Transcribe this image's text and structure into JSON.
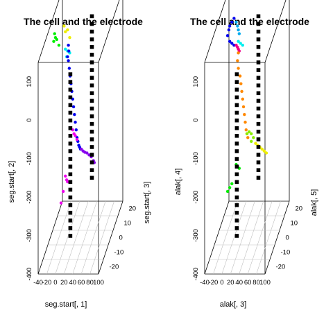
{
  "colors": {
    "electrode": "#000000",
    "grid": "#bfbfbf",
    "background": "#ffffff"
  },
  "chart_data": [
    {
      "type": "scatter3d",
      "title": "The cell and the electrode",
      "xlabel": "seg.start[, 1]",
      "ylabel": "seg.start[, 2]",
      "zlabel": "seg.start[, 3]",
      "xlim": [
        -40,
        100
      ],
      "ylim": [
        -400,
        150
      ],
      "zlim": [
        -25,
        25
      ],
      "x_ticks": [
        "-40",
        "-20",
        "0",
        "20",
        "40",
        "60",
        "80",
        "100"
      ],
      "y_ticks": [
        "100",
        "0",
        "-100",
        "-200",
        "-300",
        "-400"
      ],
      "z_ticks": [
        "20",
        "10",
        "0",
        "-10",
        "-20"
      ],
      "electrode": {
        "color": "#000000",
        "points": [
          [
            43,
            130,
            12
          ],
          [
            43,
            110,
            12
          ],
          [
            43,
            90,
            12
          ],
          [
            43,
            70,
            12
          ],
          [
            43,
            50,
            12
          ],
          [
            43,
            30,
            12
          ],
          [
            43,
            10,
            12
          ],
          [
            43,
            -10,
            12
          ],
          [
            43,
            -30,
            12
          ],
          [
            43,
            -50,
            12
          ],
          [
            43,
            -70,
            12
          ],
          [
            43,
            -90,
            12
          ],
          [
            43,
            -110,
            12
          ],
          [
            43,
            -130,
            12
          ],
          [
            43,
            -150,
            12
          ],
          [
            43,
            -170,
            12
          ],
          [
            43,
            -190,
            12
          ],
          [
            43,
            -210,
            12
          ],
          [
            43,
            -230,
            12
          ],
          [
            43,
            -250,
            12
          ],
          [
            43,
            -270,
            12
          ],
          [
            43,
            -290,
            12
          ],
          [
            20,
            70,
            -12
          ],
          [
            20,
            50,
            -12
          ],
          [
            20,
            30,
            -12
          ],
          [
            20,
            10,
            -12
          ],
          [
            20,
            -10,
            -12
          ],
          [
            20,
            -30,
            -12
          ],
          [
            20,
            -50,
            -12
          ],
          [
            20,
            -70,
            -12
          ],
          [
            20,
            -90,
            -12
          ],
          [
            20,
            -110,
            -12
          ],
          [
            20,
            -130,
            -12
          ],
          [
            20,
            -150,
            -12
          ],
          [
            20,
            -170,
            -12
          ],
          [
            20,
            -190,
            -12
          ],
          [
            20,
            -210,
            -12
          ],
          [
            20,
            -230,
            -12
          ],
          [
            20,
            -250,
            -12
          ],
          [
            20,
            -270,
            -12
          ],
          [
            20,
            -290,
            -12
          ],
          [
            20,
            -310,
            -12
          ],
          [
            20,
            -330,
            -12
          ],
          [
            20,
            -350,
            -12
          ]
        ]
      },
      "segments": [
        {
          "color": "#00ee00",
          "points": [
            [
              -30,
              130,
              0
            ],
            [
              -28,
              120,
              0
            ],
            [
              -32,
              110,
              0
            ],
            [
              -25,
              115,
              0
            ],
            [
              -20,
              100,
              0
            ]
          ]
        },
        {
          "color": "#eeee00",
          "points": [
            [
              -8,
              150,
              0
            ],
            [
              -5,
              135,
              0
            ],
            [
              0,
              140,
              0
            ],
            [
              5,
              120,
              0
            ]
          ]
        },
        {
          "color": "#00eeee",
          "points": [
            [
              -5,
              90,
              0
            ],
            [
              0,
              85,
              0
            ],
            [
              -2,
              70,
              0
            ],
            [
              5,
              80,
              0
            ]
          ]
        },
        {
          "color": "#0000ee",
          "points": [
            [
              2,
              100,
              0
            ],
            [
              3,
              85,
              0
            ],
            [
              0,
              70,
              0
            ],
            [
              2,
              60,
              0
            ],
            [
              4,
              40,
              0
            ],
            [
              6,
              20,
              0
            ],
            [
              8,
              0,
              0
            ],
            [
              10,
              -20,
              0
            ],
            [
              12,
              -40,
              0
            ],
            [
              14,
              -60,
              0
            ],
            [
              16,
              -80,
              0
            ],
            [
              18,
              -100,
              0
            ],
            [
              20,
              -120,
              0
            ],
            [
              22,
              -140,
              0
            ],
            [
              24,
              -150,
              0
            ],
            [
              26,
              -160,
              0
            ],
            [
              28,
              -165,
              0
            ],
            [
              30,
              -170,
              0
            ]
          ]
        },
        {
          "color": "#8800ee",
          "points": [
            [
              32,
              -170,
              0
            ],
            [
              36,
              -175,
              0
            ],
            [
              40,
              -178,
              0
            ],
            [
              45,
              -180,
              0
            ],
            [
              50,
              -185,
              0
            ],
            [
              55,
              -190,
              0
            ],
            [
              60,
              -200,
              0
            ],
            [
              62,
              -205,
              0
            ]
          ]
        },
        {
          "color": "#ee00ee",
          "points": [
            [
              12,
              -120,
              0
            ],
            [
              15,
              -130,
              0
            ],
            [
              18,
              -135,
              0
            ],
            [
              22,
              -145,
              0
            ]
          ]
        },
        {
          "color": "#ee00ee",
          "points": [
            [
              -5,
              -240,
              0
            ],
            [
              -2,
              -250,
              0
            ],
            [
              0,
              -255,
              0
            ],
            [
              -10,
              -280,
              0
            ],
            [
              -15,
              -310,
              0
            ]
          ]
        }
      ]
    },
    {
      "type": "scatter3d",
      "title": "The cell and the electrode",
      "xlabel": "alak[, 3]",
      "ylabel": "alak[, 4]",
      "zlabel": "alak[, 5]",
      "xlim": [
        -40,
        100
      ],
      "ylim": [
        -400,
        150
      ],
      "zlim": [
        -25,
        25
      ],
      "x_ticks": [
        "-40",
        "-20",
        "0",
        "20",
        "40",
        "60",
        "80",
        "100"
      ],
      "y_ticks": [
        "100",
        "0",
        "-100",
        "-200",
        "-300",
        "-400"
      ],
      "z_ticks": [
        "20",
        "10",
        "0",
        "-10",
        "-20"
      ],
      "electrode": {
        "color": "#000000",
        "points": [
          [
            43,
            130,
            12
          ],
          [
            43,
            110,
            12
          ],
          [
            43,
            90,
            12
          ],
          [
            43,
            70,
            12
          ],
          [
            43,
            50,
            12
          ],
          [
            43,
            30,
            12
          ],
          [
            43,
            10,
            12
          ],
          [
            43,
            -10,
            12
          ],
          [
            43,
            -30,
            12
          ],
          [
            43,
            -50,
            12
          ],
          [
            43,
            -70,
            12
          ],
          [
            43,
            -90,
            12
          ],
          [
            43,
            -110,
            12
          ],
          [
            43,
            -130,
            12
          ],
          [
            43,
            -150,
            12
          ],
          [
            43,
            -170,
            12
          ],
          [
            43,
            -190,
            12
          ],
          [
            43,
            -210,
            12
          ],
          [
            43,
            -230,
            12
          ],
          [
            43,
            -250,
            12
          ],
          [
            43,
            -270,
            12
          ],
          [
            43,
            -290,
            12
          ],
          [
            20,
            70,
            -12
          ],
          [
            20,
            50,
            -12
          ],
          [
            20,
            30,
            -12
          ],
          [
            20,
            10,
            -12
          ],
          [
            20,
            -10,
            -12
          ],
          [
            20,
            -30,
            -12
          ],
          [
            20,
            -50,
            -12
          ],
          [
            20,
            -70,
            -12
          ],
          [
            20,
            -90,
            -12
          ],
          [
            20,
            -110,
            -12
          ],
          [
            20,
            -130,
            -12
          ],
          [
            20,
            -150,
            -12
          ],
          [
            20,
            -170,
            -12
          ],
          [
            20,
            -190,
            -12
          ],
          [
            20,
            -210,
            -12
          ],
          [
            20,
            -230,
            -12
          ],
          [
            20,
            -250,
            -12
          ],
          [
            20,
            -270,
            -12
          ],
          [
            20,
            -290,
            -12
          ],
          [
            20,
            -310,
            -12
          ],
          [
            20,
            -330,
            -12
          ],
          [
            20,
            -350,
            -12
          ]
        ]
      },
      "segments": [
        {
          "color": "#0000ee",
          "points": [
            [
              -10,
              150,
              0
            ],
            [
              -5,
              160,
              0
            ],
            [
              0,
              170,
              0
            ],
            [
              -12,
              140,
              0
            ],
            [
              -15,
              125,
              0
            ],
            [
              -10,
              110,
              0
            ],
            [
              -5,
              105,
              0
            ],
            [
              0,
              100,
              0
            ]
          ]
        },
        {
          "color": "#00aaee",
          "points": [
            [
              5,
              160,
              0
            ],
            [
              8,
              150,
              0
            ],
            [
              10,
              140,
              0
            ],
            [
              12,
              130,
              0
            ]
          ]
        },
        {
          "color": "#00eeee",
          "points": [
            [
              10,
              110,
              0
            ],
            [
              15,
              105,
              0
            ],
            [
              20,
              100,
              0
            ]
          ]
        },
        {
          "color": "#ee0088",
          "points": [
            [
              5,
              100,
              0
            ],
            [
              8,
              95,
              0
            ],
            [
              10,
              90,
              0
            ],
            [
              12,
              85,
              0
            ]
          ]
        },
        {
          "color": "#ff8800",
          "points": [
            [
              10,
              80,
              0
            ],
            [
              8,
              60,
              0
            ],
            [
              10,
              40,
              0
            ],
            [
              14,
              20,
              0
            ],
            [
              16,
              0,
              0
            ],
            [
              18,
              -20,
              0
            ],
            [
              20,
              -40,
              0
            ],
            [
              22,
              -60,
              0
            ],
            [
              24,
              -80,
              0
            ],
            [
              26,
              -100,
              0
            ],
            [
              28,
              -120,
              0
            ],
            [
              30,
              -130,
              0
            ],
            [
              32,
              -140,
              0
            ]
          ]
        },
        {
          "color": "#88ee00",
          "points": [
            [
              30,
              -130,
              0
            ],
            [
              35,
              -125,
              0
            ],
            [
              40,
              -130,
              0
            ],
            [
              45,
              -140,
              0
            ],
            [
              40,
              -150,
              0
            ]
          ]
        },
        {
          "color": "#eeee00",
          "points": [
            [
              50,
              -155,
              0
            ],
            [
              55,
              -160,
              0
            ],
            [
              60,
              -165,
              0
            ],
            [
              65,
              -170,
              0
            ],
            [
              70,
              -175,
              0
            ],
            [
              75,
              -180,
              0
            ]
          ]
        },
        {
          "color": "#00ee00",
          "points": [
            [
              5,
              -210,
              0
            ],
            [
              8,
              -215,
              0
            ],
            [
              12,
              -220,
              0
            ],
            [
              -5,
              -260,
              0
            ],
            [
              -10,
              -270,
              0
            ],
            [
              -15,
              -280,
              0
            ]
          ]
        }
      ]
    }
  ]
}
